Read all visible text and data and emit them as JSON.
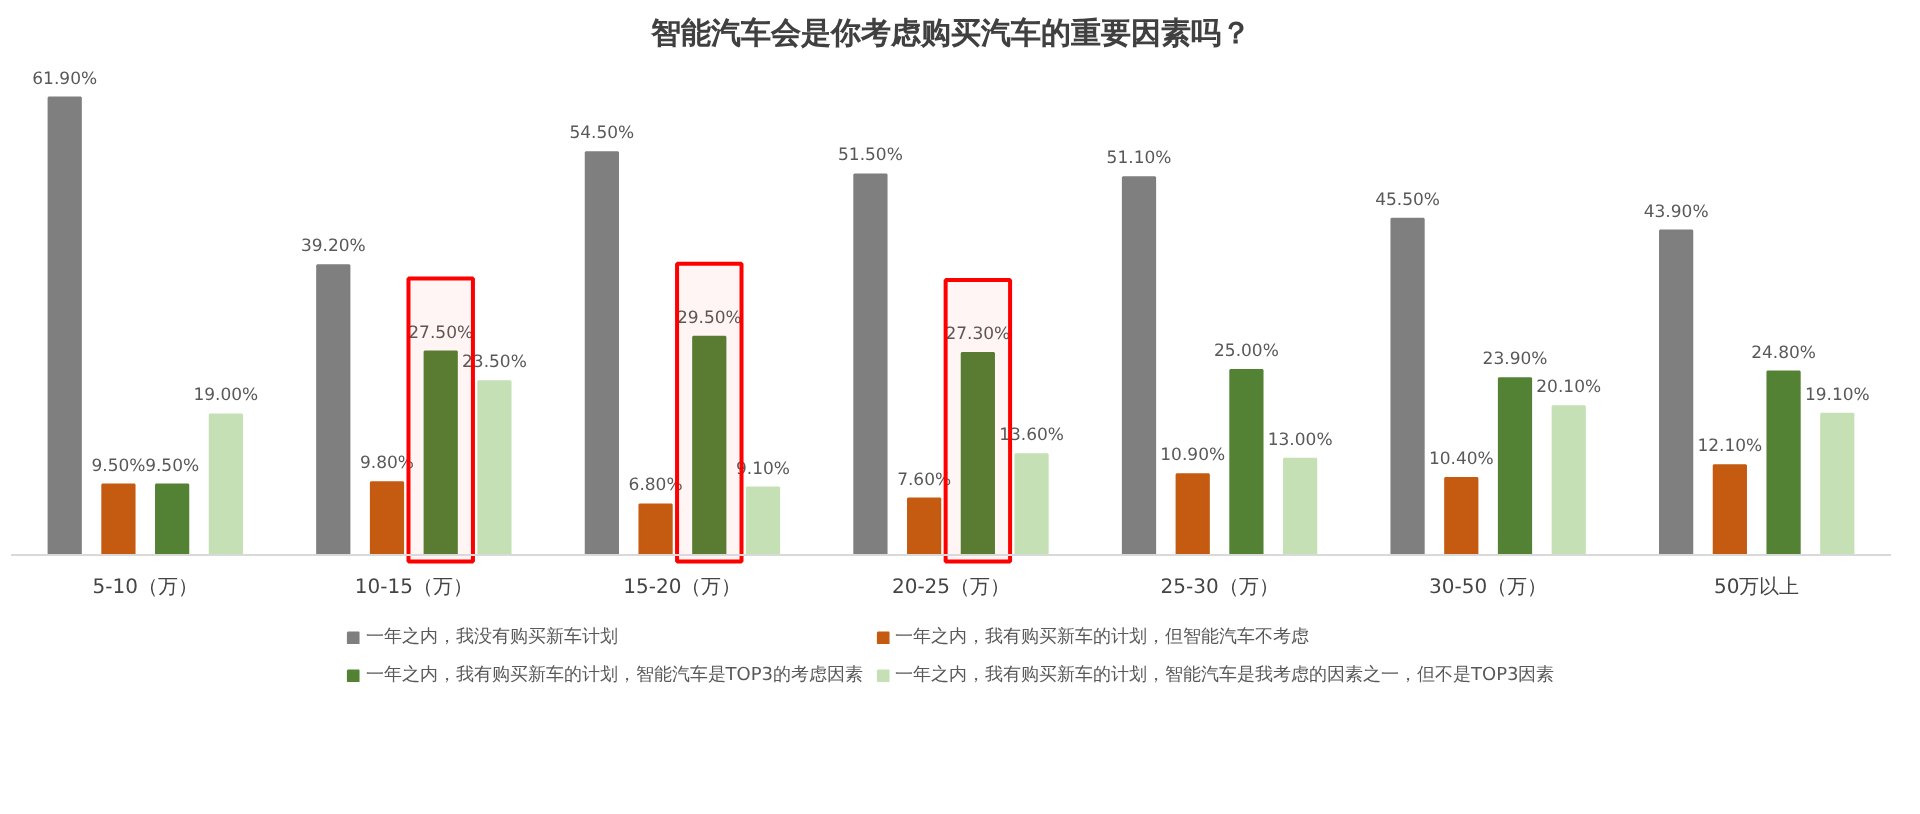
{
  "chart_data": {
    "type": "bar",
    "title": "智能汽车会是你考虑购买汽车的重要因素吗？",
    "categories": [
      "5-10（万）",
      "10-15（万）",
      "15-20（万）",
      "20-25（万）",
      "25-30（万）",
      "30-50（万）",
      "50万以上"
    ],
    "series": [
      {
        "name": "一年之内，我没有购买新车计划",
        "color": "#7f7f7f",
        "values": [
          61.9,
          39.2,
          54.5,
          51.5,
          51.1,
          45.5,
          43.9
        ],
        "value_labels": [
          "61.90%",
          "39.20%",
          "54.50%",
          "51.50%",
          "51.10%",
          "45.50%",
          "43.90%"
        ]
      },
      {
        "name": "一年之内，我有购买新车的计划，但智能汽车不考虑",
        "color": "#c55a11",
        "values": [
          9.5,
          9.8,
          6.8,
          7.6,
          10.9,
          10.4,
          12.1
        ],
        "value_labels": [
          "9.50%",
          "9.80%",
          "6.80%",
          "7.60%",
          "10.90%",
          "10.40%",
          "12.10%"
        ]
      },
      {
        "name": "一年之内，我有购买新车的计划，智能汽车是TOP3的考虑因素",
        "color": "#548235",
        "values": [
          9.5,
          27.5,
          29.5,
          27.3,
          25.0,
          23.9,
          24.8
        ],
        "value_labels": [
          "9.50%",
          "27.50%",
          "29.50%",
          "27.30%",
          "25.00%",
          "23.90%",
          "24.80%"
        ]
      },
      {
        "name": "一年之内，我有购买新车的计划，智能汽车是我考虑的因素之一，但不是TOP3因素",
        "color": "#c5e0b4",
        "values": [
          19.0,
          23.5,
          9.1,
          13.6,
          13.0,
          20.1,
          19.1
        ],
        "value_labels": [
          "19.00%",
          "23.50%",
          "9.10%",
          "13.60%",
          "13.00%",
          "20.10%",
          "19.10%"
        ]
      }
    ],
    "bands": [
      {
        "axis": "x",
        "from": "10-15（万）",
        "to": "10-15（万）",
        "color": "#ff0000"
      },
      {
        "axis": "x",
        "from": "15-20（万）",
        "to": "15-20（万）",
        "color": "#ff0000"
      },
      {
        "axis": "x",
        "from": "20-25（万）",
        "to": "20-25（万）",
        "color": "#ff0000"
      }
    ],
    "legend": "bottom",
    "grid": false
  }
}
